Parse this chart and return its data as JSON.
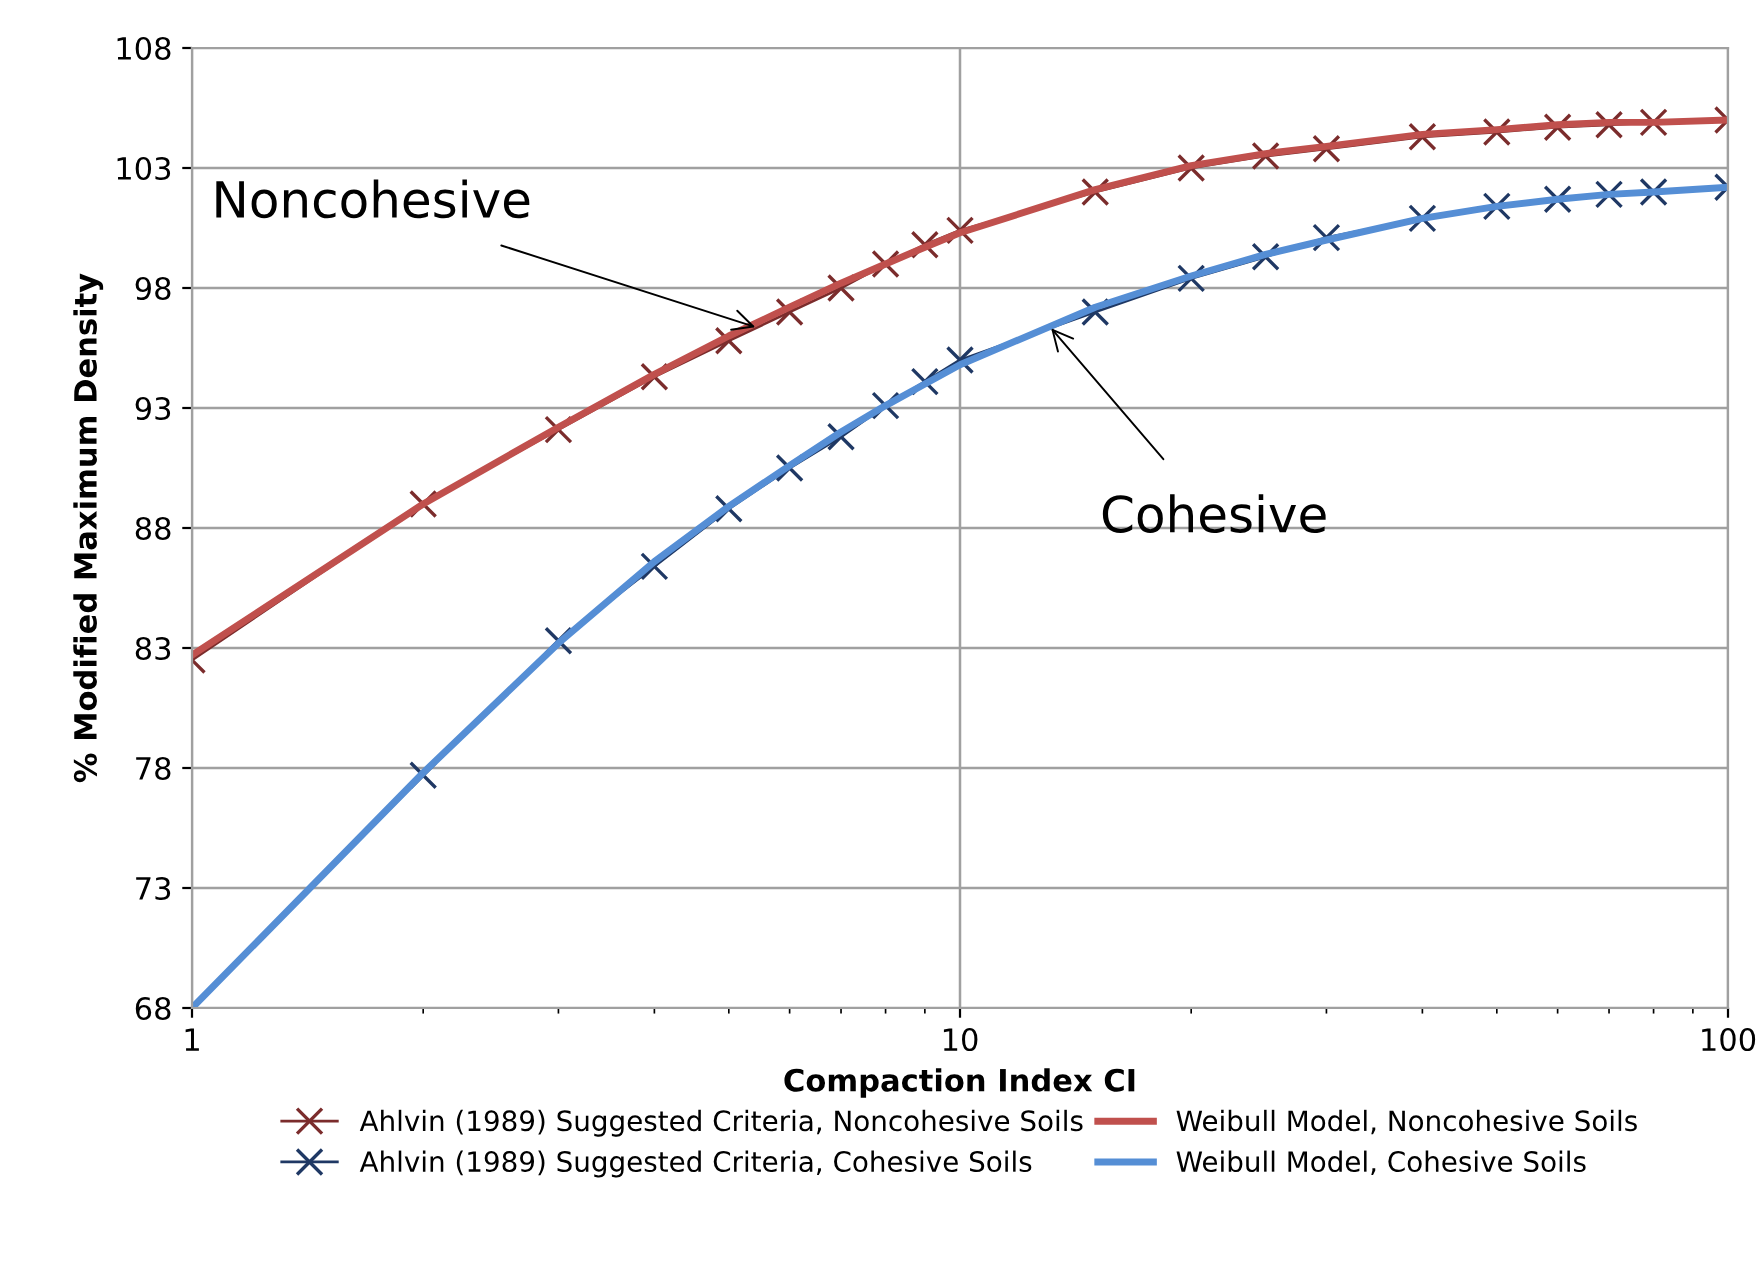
{
  "chart_data": {
    "type": "line",
    "xlabel": "Compaction Index CI",
    "ylabel": "% Modified Maximum Density",
    "x": [
      1,
      2,
      3,
      4,
      5,
      6,
      7,
      8,
      9,
      10,
      15,
      20,
      25,
      30,
      40,
      50,
      60,
      70,
      80,
      100
    ],
    "series": [
      {
        "name": "Ahlvin (1989) Suggested Criteria, Noncohesive Soils",
        "color": "#7b2c2c",
        "marker": "cross",
        "values": [
          82.5,
          89.0,
          92.1,
          94.3,
          95.8,
          97.0,
          98.0,
          99.0,
          99.8,
          100.4,
          102.0,
          103.0,
          103.5,
          103.8,
          104.3,
          104.5,
          104.7,
          104.8,
          104.9,
          105.0
        ]
      },
      {
        "name": "Weibull Model, Noncohesive Soils",
        "color": "#c0504d",
        "marker": "none",
        "values": [
          82.7,
          89.0,
          92.2,
          94.4,
          96.0,
          97.2,
          98.2,
          99.0,
          99.7,
          100.3,
          102.1,
          103.1,
          103.6,
          103.9,
          104.4,
          104.6,
          104.8,
          104.9,
          104.9,
          105.0
        ]
      },
      {
        "name": "Ahlvin (1989) Suggested Criteria, Cohesive Soils",
        "color": "#1f3864",
        "marker": "cross",
        "values": [
          68.0,
          77.7,
          83.3,
          86.4,
          88.8,
          90.5,
          91.8,
          93.1,
          94.1,
          95.0,
          97.0,
          98.4,
          99.3,
          100.1,
          100.9,
          101.4,
          101.7,
          101.9,
          102.0,
          102.2
        ]
      },
      {
        "name": "Weibull Model, Cohesive Soils",
        "color": "#558ed5",
        "marker": "none",
        "values": [
          68.0,
          77.8,
          83.2,
          86.6,
          88.9,
          90.6,
          92.0,
          93.1,
          94.0,
          94.8,
          97.2,
          98.5,
          99.4,
          100.0,
          100.9,
          101.4,
          101.7,
          101.9,
          102.0,
          102.2
        ]
      }
    ],
    "xlim": [
      1,
      100
    ],
    "xticks": [
      1,
      10,
      100
    ],
    "log": "x",
    "ylim": [
      68,
      108
    ],
    "yticks": [
      68,
      73,
      78,
      83,
      88,
      93,
      98,
      103,
      108
    ],
    "grid": true,
    "legend": "bottom",
    "annotations": [
      {
        "text": "Noncohesive",
        "x": 5.5,
        "y": 96.3
      },
      {
        "text": "Cohesive",
        "x": 13,
        "y": 96.5
      }
    ]
  }
}
